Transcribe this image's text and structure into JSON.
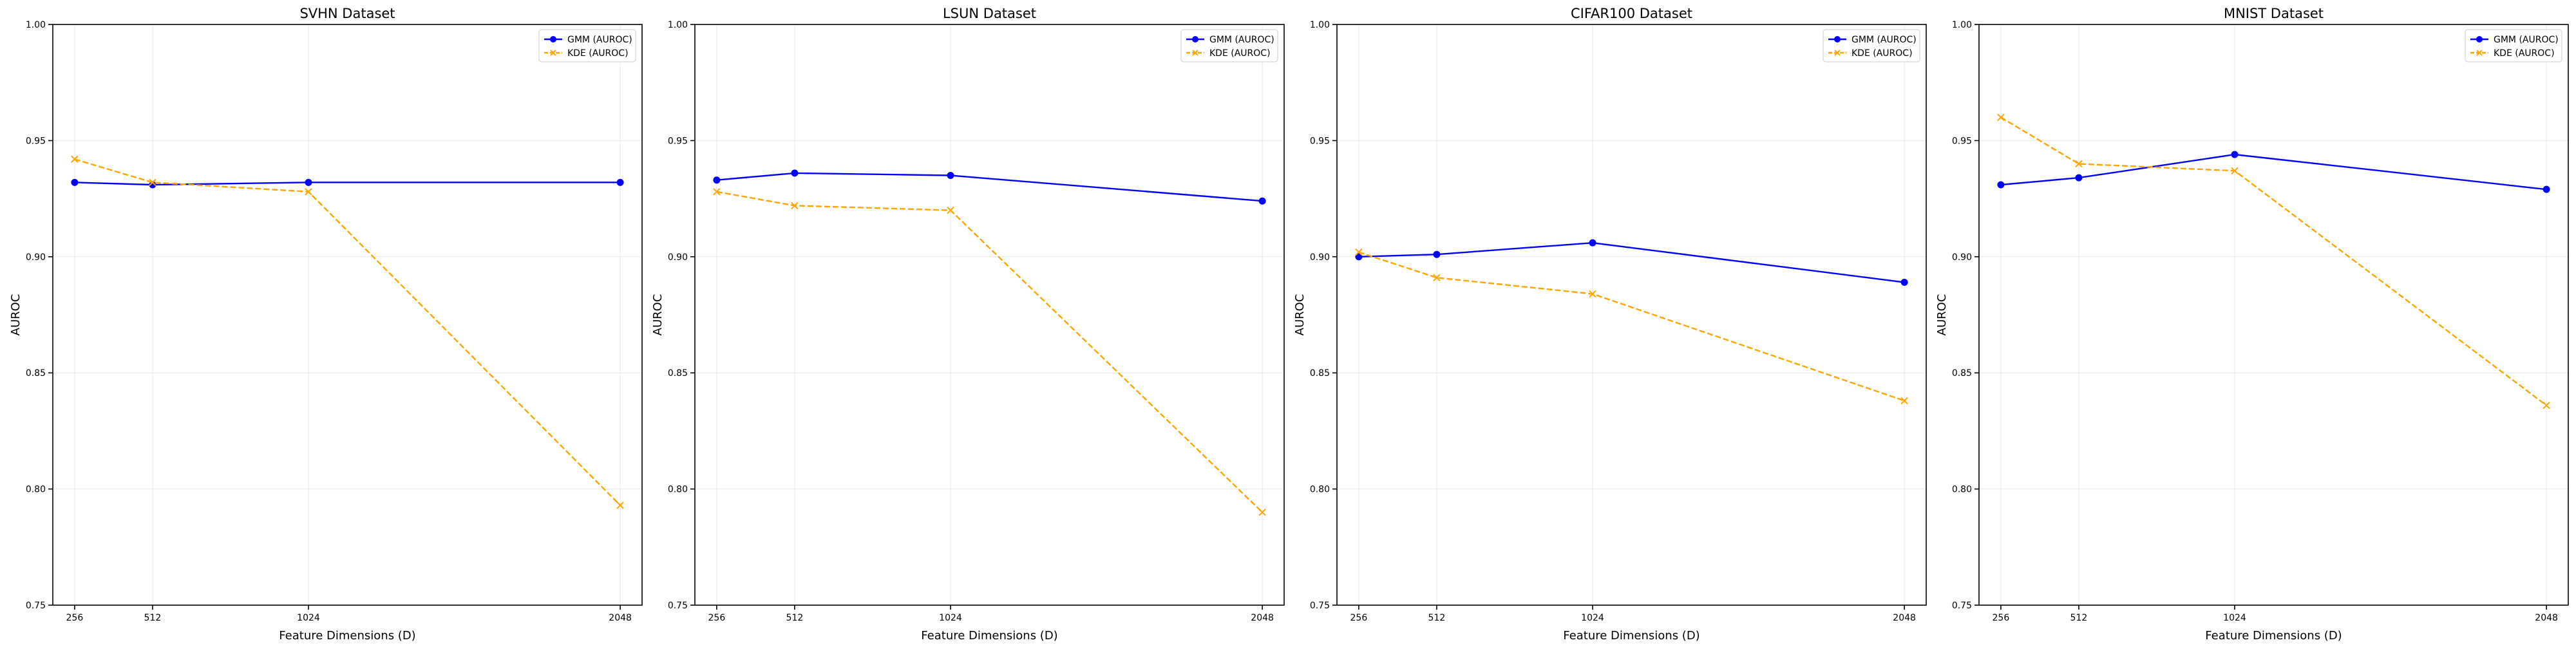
{
  "chart_data": [
    {
      "type": "line",
      "title": "SVHN Dataset",
      "xlabel": "Feature Dimensions (D)",
      "ylabel": "AUROC",
      "x": [
        256,
        512,
        1024,
        2048
      ],
      "xticks": [
        "256",
        "512",
        "1024",
        "2048"
      ],
      "ylim": [
        0.75,
        1.0
      ],
      "yticks": [
        "0.75",
        "0.80",
        "0.85",
        "0.90",
        "0.95",
        "1.00"
      ],
      "grid": true,
      "legend": "top-right",
      "series": [
        {
          "name": "GMM (AUROC)",
          "values": [
            0.932,
            0.931,
            0.932,
            0.932
          ],
          "color": "#0000ff",
          "marker": "circle",
          "linestyle": "solid"
        },
        {
          "name": "KDE (AUROC)",
          "values": [
            0.942,
            0.932,
            0.928,
            0.793
          ],
          "color": "#ffa500",
          "marker": "x",
          "linestyle": "dashed"
        }
      ]
    },
    {
      "type": "line",
      "title": "LSUN Dataset",
      "xlabel": "Feature Dimensions (D)",
      "ylabel": "AUROC",
      "x": [
        256,
        512,
        1024,
        2048
      ],
      "xticks": [
        "256",
        "512",
        "1024",
        "2048"
      ],
      "ylim": [
        0.75,
        1.0
      ],
      "yticks": [
        "0.75",
        "0.80",
        "0.85",
        "0.90",
        "0.95",
        "1.00"
      ],
      "grid": true,
      "legend": "top-right",
      "series": [
        {
          "name": "GMM (AUROC)",
          "values": [
            0.933,
            0.936,
            0.935,
            0.924
          ],
          "color": "#0000ff",
          "marker": "circle",
          "linestyle": "solid"
        },
        {
          "name": "KDE (AUROC)",
          "values": [
            0.928,
            0.922,
            0.92,
            0.79
          ],
          "color": "#ffa500",
          "marker": "x",
          "linestyle": "dashed"
        }
      ]
    },
    {
      "type": "line",
      "title": "CIFAR100 Dataset",
      "xlabel": "Feature Dimensions (D)",
      "ylabel": "AUROC",
      "x": [
        256,
        512,
        1024,
        2048
      ],
      "xticks": [
        "256",
        "512",
        "1024",
        "2048"
      ],
      "ylim": [
        0.75,
        1.0
      ],
      "yticks": [
        "0.75",
        "0.80",
        "0.85",
        "0.90",
        "0.95",
        "1.00"
      ],
      "grid": true,
      "legend": "top-right",
      "series": [
        {
          "name": "GMM (AUROC)",
          "values": [
            0.9,
            0.901,
            0.906,
            0.889
          ],
          "color": "#0000ff",
          "marker": "circle",
          "linestyle": "solid"
        },
        {
          "name": "KDE (AUROC)",
          "values": [
            0.902,
            0.891,
            0.884,
            0.838
          ],
          "color": "#ffa500",
          "marker": "x",
          "linestyle": "dashed"
        }
      ]
    },
    {
      "type": "line",
      "title": "MNIST Dataset",
      "xlabel": "Feature Dimensions (D)",
      "ylabel": "AUROC",
      "x": [
        256,
        512,
        1024,
        2048
      ],
      "xticks": [
        "256",
        "512",
        "1024",
        "2048"
      ],
      "ylim": [
        0.75,
        1.0
      ],
      "yticks": [
        "0.75",
        "0.80",
        "0.85",
        "0.90",
        "0.95",
        "1.00"
      ],
      "grid": true,
      "legend": "top-right",
      "series": [
        {
          "name": "GMM (AUROC)",
          "values": [
            0.931,
            0.934,
            0.944,
            0.929
          ],
          "color": "#0000ff",
          "marker": "circle",
          "linestyle": "solid"
        },
        {
          "name": "KDE (AUROC)",
          "values": [
            0.96,
            0.94,
            0.937,
            0.836
          ],
          "color": "#ffa500",
          "marker": "x",
          "linestyle": "dashed"
        }
      ]
    }
  ]
}
